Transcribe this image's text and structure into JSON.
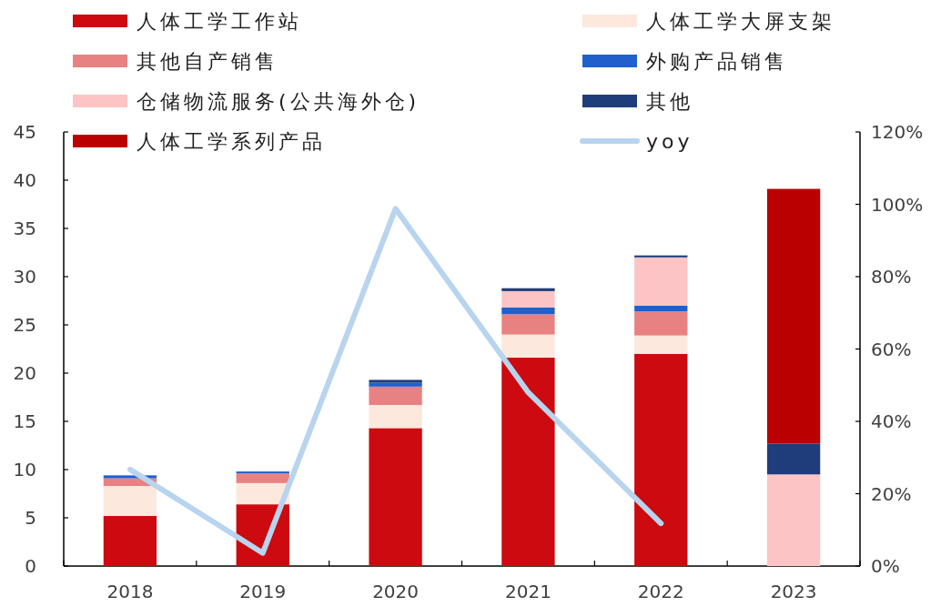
{
  "chart_data": {
    "type": "bar",
    "stacked": true,
    "categories": [
      "2018",
      "2019",
      "2020",
      "2021",
      "2022",
      "2023"
    ],
    "series": [
      {
        "name": "人体工学工作站",
        "color": "#cc0a0f",
        "values": [
          5.2,
          6.4,
          14.3,
          21.6,
          22.0,
          null
        ]
      },
      {
        "name": "人体工学大屏支架",
        "color": "#fce8dc",
        "values": [
          3.1,
          2.2,
          2.4,
          2.4,
          1.9,
          null
        ]
      },
      {
        "name": "其他自产销售",
        "color": "#e88282",
        "values": [
          0.8,
          1.0,
          1.9,
          2.1,
          2.5,
          null
        ]
      },
      {
        "name": "外购产品销售",
        "color": "#2060cc",
        "values": [
          0.3,
          0.2,
          0.4,
          0.7,
          0.6,
          null
        ]
      },
      {
        "name": "仓储物流服务(公共海外仓)",
        "color": "#fcc4c4",
        "values": [
          null,
          null,
          null,
          1.7,
          5.0,
          9.5
        ]
      },
      {
        "name": "其他",
        "color": "#1f3d7a",
        "values": [
          null,
          null,
          0.3,
          0.3,
          0.2,
          3.2
        ]
      },
      {
        "name": "人体工学系列产品",
        "color": "#bb0000",
        "values": [
          null,
          null,
          null,
          null,
          null,
          26.4
        ]
      },
      {
        "name": "yoy",
        "type": "line",
        "axis": "y2",
        "color": "#b8d4ee",
        "values": [
          26.7,
          3.6,
          98.8,
          48,
          11.8,
          null
        ]
      }
    ],
    "ylim": [
      0,
      45
    ],
    "yticks": [
      0,
      5,
      10,
      15,
      20,
      25,
      30,
      35,
      40,
      45
    ],
    "y2lim": [
      0,
      120
    ],
    "y2ticks": [
      {
        "value": 0,
        "label": "0%"
      },
      {
        "value": 20,
        "label": "20%"
      },
      {
        "value": 40,
        "label": "40%"
      },
      {
        "value": 60,
        "label": "60%"
      },
      {
        "value": 80,
        "label": "80%"
      },
      {
        "value": 100,
        "label": "100%"
      },
      {
        "value": 120,
        "label": "120%"
      }
    ],
    "grid": false,
    "legend": "top"
  }
}
